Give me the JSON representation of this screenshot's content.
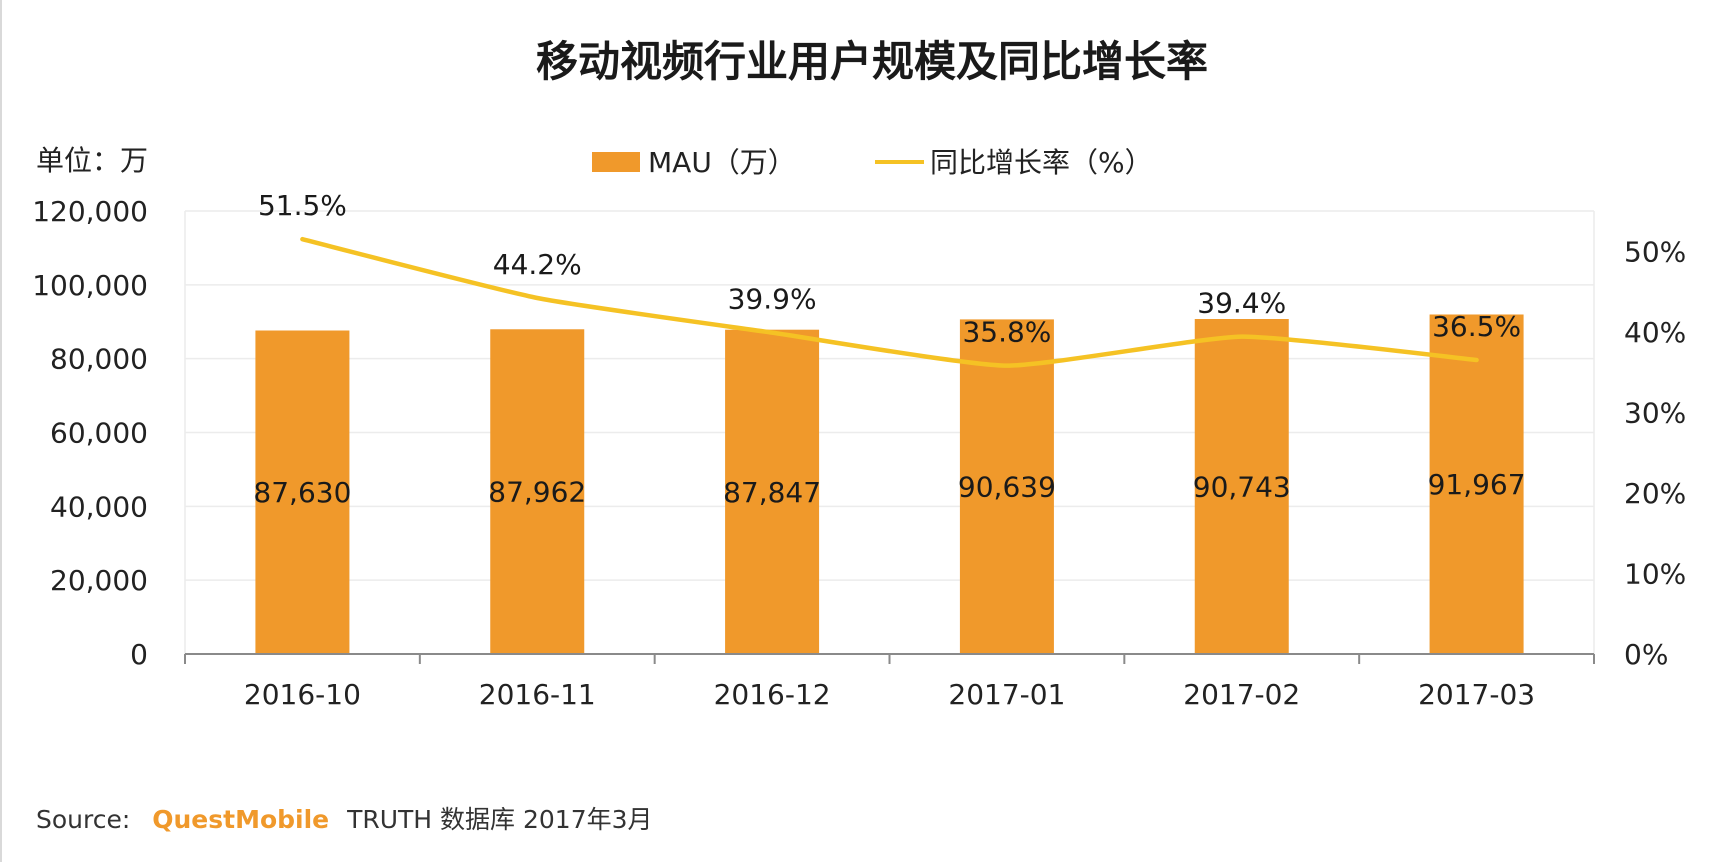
{
  "colors": {
    "bar": "#F0992B",
    "line": "#F5C224",
    "grid": "#ececec",
    "axis": "#8a8a8a",
    "brand": "#F0992B"
  },
  "unit_label": "单位：万",
  "source": {
    "prefix": "Source:",
    "brand": "QuestMobile",
    "rest": "TRUTH 数据库 2017年3月"
  },
  "chart_data": {
    "type": "bar",
    "title": "移动视频行业用户规模及同比增长率",
    "categories": [
      "2016-10",
      "2016-11",
      "2016-12",
      "2017-01",
      "2017-02",
      "2017-03"
    ],
    "series": [
      {
        "name": "MAU（万）",
        "type": "bar",
        "axis": "left",
        "values": [
          87630,
          87962,
          87847,
          90639,
          90743,
          91967
        ],
        "labels": [
          "87,630",
          "87,962",
          "87,847",
          "90,639",
          "90,743",
          "91,967"
        ]
      },
      {
        "name": "同比增长率（%）",
        "type": "line",
        "axis": "right",
        "values": [
          51.5,
          44.2,
          39.9,
          35.8,
          39.4,
          36.5
        ],
        "labels": [
          "51.5%",
          "44.2%",
          "39.9%",
          "35.8%",
          "39.4%",
          "36.5%"
        ]
      }
    ],
    "y_left": {
      "min": 0,
      "max": 120000,
      "ticks": [
        0,
        20000,
        40000,
        60000,
        80000,
        100000,
        120000
      ],
      "tick_labels": [
        "0",
        "20,000",
        "40,000",
        "60,000",
        "80,000",
        "100,000",
        "120,000"
      ]
    },
    "y_right": {
      "min": 0,
      "max": 55,
      "ticks": [
        0,
        10,
        20,
        30,
        40,
        50
      ],
      "tick_labels": [
        "0%",
        "10%",
        "20%",
        "30%",
        "40%",
        "50%"
      ]
    },
    "legend_position": "top-center",
    "grid": true
  }
}
